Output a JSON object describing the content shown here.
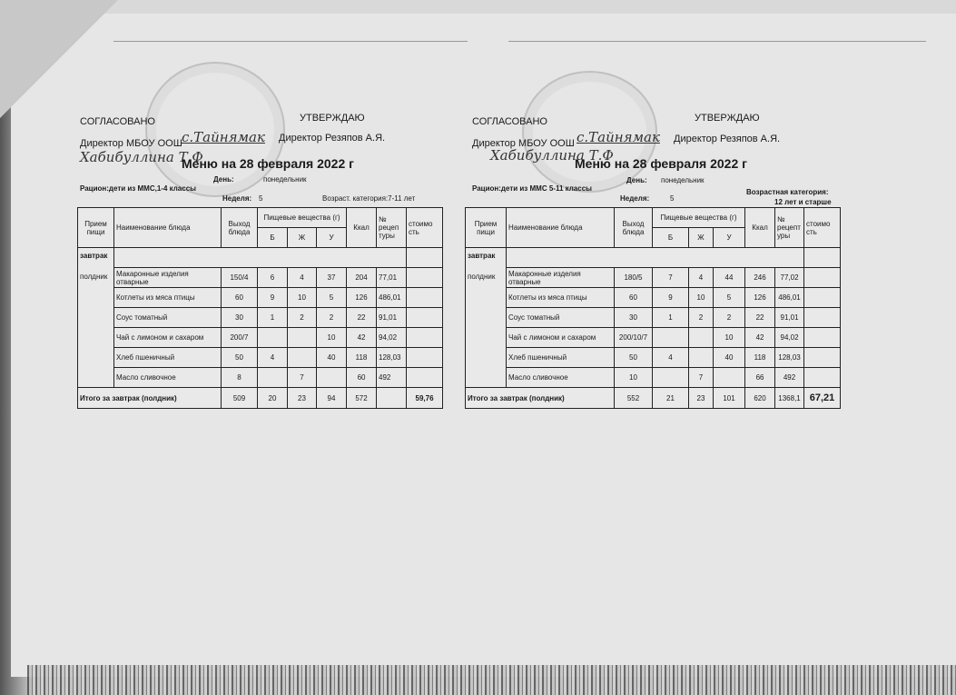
{
  "left": {
    "agreed": "СОГЛАСОВАНО",
    "approve": "УТВЕРЖДАЮ",
    "director_school": "Директор МБОУ ООШ",
    "director_name": "Директор Резяпов А.Я.",
    "signature_handwritten": "с.Тайнямак",
    "handwritten_name": "Хабибуллина Т.Ф",
    "title": "Меню на 28 февраля 2022 г",
    "day_label": "День:",
    "day_value": "понедельник",
    "ration": "Рацион:дети из ММС,1-4 классы",
    "week_label": "Неделя:",
    "week_value": "5",
    "age_category": "Возраст. категория:7-11 лет",
    "headers": {
      "meal": "Прием пищи",
      "dish": "Наименование блюда",
      "yield": "Выход блюда",
      "nutrients": "Пищевые вещества (г)",
      "b": "Б",
      "zh": "Ж",
      "u": "У",
      "kcal": "Ккал",
      "recipe": "№ рецеп туры",
      "cost": "стоимо сть"
    },
    "meal_types": [
      "завтрак",
      "полдник"
    ],
    "rows": [
      {
        "dish": "Макаронные изделия отварные",
        "yield": "150/4",
        "b": "6",
        "zh": "4",
        "u": "37",
        "kcal": "204",
        "recipe": "77,01",
        "cost": ""
      },
      {
        "dish": "Котлеты из мяса птицы",
        "yield": "60",
        "b": "9",
        "zh": "10",
        "u": "5",
        "kcal": "126",
        "recipe": "486,01",
        "cost": ""
      },
      {
        "dish": "Соус томатный",
        "yield": "30",
        "b": "1",
        "zh": "2",
        "u": "2",
        "kcal": "22",
        "recipe": "91,01",
        "cost": ""
      },
      {
        "dish": "Чай с лимоном и сахаром",
        "yield": "200/7",
        "b": "",
        "zh": "",
        "u": "10",
        "kcal": "42",
        "recipe": "94,02",
        "cost": ""
      },
      {
        "dish": "Хлеб пшеничный",
        "yield": "50",
        "b": "4",
        "zh": "",
        "u": "40",
        "kcal": "118",
        "recipe": "128,03",
        "cost": ""
      },
      {
        "dish": "Масло сливочное",
        "yield": "8",
        "b": "",
        "zh": "7",
        "u": "",
        "kcal": "60",
        "recipe": "492",
        "cost": ""
      }
    ],
    "total": {
      "label": "Итого за завтрак (полдник)",
      "yield": "509",
      "b": "20",
      "zh": "23",
      "u": "94",
      "kcal": "572",
      "recipe": "",
      "cost": "59,76"
    }
  },
  "right": {
    "agreed": "СОГЛАСОВАНО",
    "approve": "УТВЕРЖДАЮ",
    "director_school": "Директор МБОУ ООШ",
    "director_name": "Директор Резяпов А.Я.",
    "signature_handwritten": "с.Тайнямак",
    "handwritten_name": "Хабибуллина Т.Ф",
    "title": "Меню на 28  февраля 2022 г",
    "day_label": "День:",
    "day_value": "понедельник",
    "ration": "Рацион:дети из ММС 5-11 классы",
    "week_label": "Неделя:",
    "week_value": "5",
    "age_category": "Возрастная категория:",
    "age_value": "12 лет и старше",
    "headers": {
      "meal": "Прием пищи",
      "dish": "Наименование блюда",
      "yield": "Выход блюда",
      "nutrients": "Пищевые вещества (г)",
      "b": "Б",
      "zh": "Ж",
      "u": "У",
      "kcal": "Ккал",
      "recipe": "№ рецепт уры",
      "cost": "стоимо сть"
    },
    "meal_types": [
      "завтрак",
      "полдник"
    ],
    "rows": [
      {
        "dish": "Макаронные изделия отварные",
        "yield": "180/5",
        "b": "7",
        "zh": "4",
        "u": "44",
        "kcal": "246",
        "recipe": "77,02",
        "cost": ""
      },
      {
        "dish": "Котлеты из мяса птицы",
        "yield": "60",
        "b": "9",
        "zh": "10",
        "u": "5",
        "kcal": "126",
        "recipe": "486,01",
        "cost": ""
      },
      {
        "dish": "Соус томатный",
        "yield": "30",
        "b": "1",
        "zh": "2",
        "u": "2",
        "kcal": "22",
        "recipe": "91,01",
        "cost": ""
      },
      {
        "dish": "Чай с лимоном и сахаром",
        "yield": "200/10/7",
        "b": "",
        "zh": "",
        "u": "10",
        "kcal": "42",
        "recipe": "94,02",
        "cost": ""
      },
      {
        "dish": "Хлеб пшеничный",
        "yield": "50",
        "b": "4",
        "zh": "",
        "u": "40",
        "kcal": "118",
        "recipe": "128,03",
        "cost": ""
      },
      {
        "dish": "Масло сливочное",
        "yield": "10",
        "b": "",
        "zh": "7",
        "u": "",
        "kcal": "66",
        "recipe": "492",
        "cost": ""
      }
    ],
    "total": {
      "label": "Итого за завтрак (полдник)",
      "yield": "552",
      "b": "21",
      "zh": "23",
      "u": "101",
      "kcal": "620",
      "recipe": "1368,1",
      "cost": "67,21"
    }
  }
}
